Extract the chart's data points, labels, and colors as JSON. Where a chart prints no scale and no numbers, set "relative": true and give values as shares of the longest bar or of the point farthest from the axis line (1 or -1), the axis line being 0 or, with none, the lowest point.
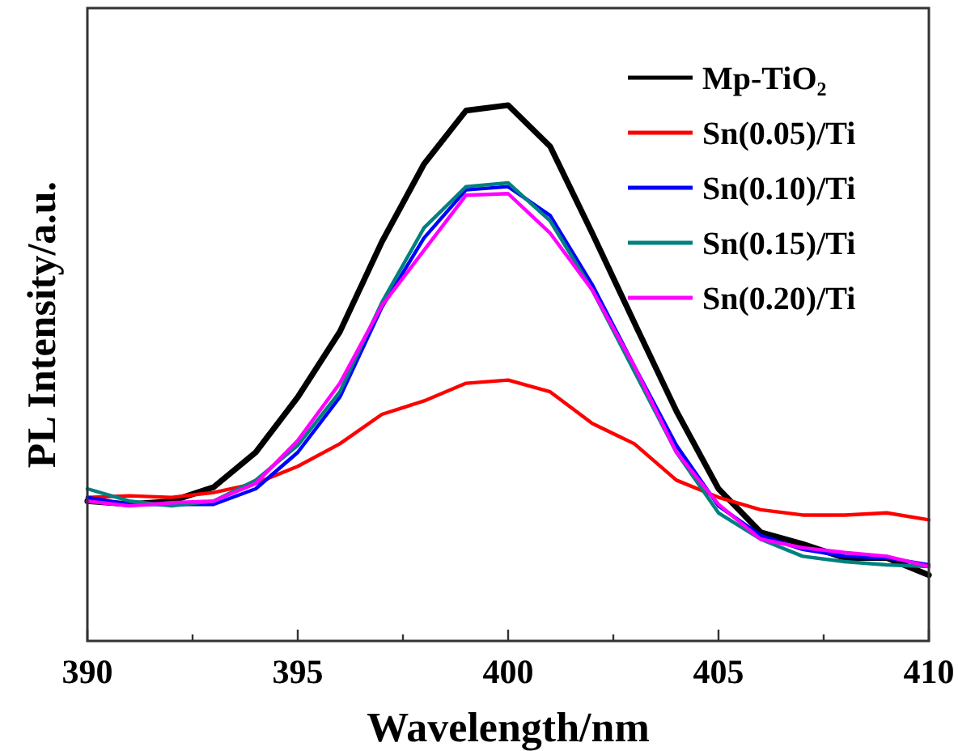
{
  "chart_data": {
    "type": "line",
    "relative": true,
    "xlabel": "Wavelength/nm",
    "ylabel": "PL Intensity/a.u.",
    "x": [
      390,
      391,
      392,
      393,
      394,
      395,
      396,
      397,
      398,
      399,
      400,
      401,
      402,
      403,
      404,
      405,
      406,
      407,
      408,
      409,
      410
    ],
    "xlim": [
      390,
      410
    ],
    "xticks": [
      390,
      {
        "value": 392.5,
        "label": null
      },
      395,
      {
        "value": 397.5,
        "label": null
      },
      400,
      {
        "value": 402.5,
        "label": null
      },
      405,
      {
        "value": 407.5,
        "label": null
      },
      410
    ],
    "legend": "top right",
    "marker": "none",
    "line_style": "solid",
    "grid": false,
    "series": [
      {
        "name": "Mp-TiO₂",
        "color": "#000000",
        "values": [
          0.261,
          0.255,
          0.261,
          0.287,
          0.352,
          0.455,
          0.577,
          0.745,
          0.89,
          0.99,
          1,
          0.923,
          0.761,
          0.594,
          0.429,
          0.284,
          0.203,
          0.181,
          0.155,
          0.155,
          0.123
        ]
      },
      {
        "name": "Sn(0.05)/Ti",
        "color": "#ff0000",
        "values": [
          0.268,
          0.271,
          0.268,
          0.277,
          0.294,
          0.326,
          0.368,
          0.423,
          0.448,
          0.481,
          0.487,
          0.465,
          0.406,
          0.368,
          0.3,
          0.268,
          0.245,
          0.235,
          0.235,
          0.239,
          0.226
        ]
      },
      {
        "name": "Sn(0.10)/Ti",
        "color": "#0000ff",
        "values": [
          0.268,
          0.255,
          0.255,
          0.255,
          0.284,
          0.352,
          0.455,
          0.623,
          0.752,
          0.842,
          0.848,
          0.794,
          0.665,
          0.513,
          0.365,
          0.252,
          0.197,
          0.171,
          0.158,
          0.155,
          0.142
        ]
      },
      {
        "name": "Sn(0.15)/Ti",
        "color": "#008080",
        "values": [
          0.284,
          0.261,
          0.252,
          0.261,
          0.3,
          0.365,
          0.465,
          0.632,
          0.771,
          0.848,
          0.855,
          0.784,
          0.655,
          0.503,
          0.352,
          0.239,
          0.19,
          0.158,
          0.148,
          0.142,
          0.139
        ]
      },
      {
        "name": "Sn(0.20)/Ti",
        "color": "#ff00ff",
        "values": [
          0.261,
          0.252,
          0.258,
          0.261,
          0.294,
          0.374,
          0.481,
          0.626,
          0.729,
          0.832,
          0.835,
          0.761,
          0.655,
          0.513,
          0.352,
          0.255,
          0.19,
          0.174,
          0.165,
          0.158,
          0.139
        ]
      }
    ]
  }
}
